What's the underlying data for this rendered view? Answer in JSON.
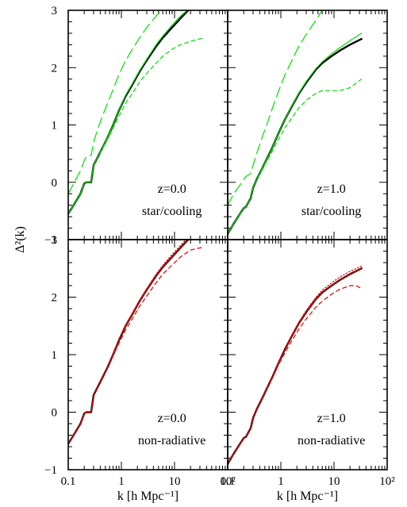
{
  "chart_data": {
    "type": "line",
    "layout": "2x2 panels sharing axes",
    "xlabel": "k [h Mpc⁻¹]",
    "ylabel": "Δ²(k)",
    "xscale": "log",
    "xlim": [
      0.1,
      100
    ],
    "ylim": [
      -1,
      3
    ],
    "x_tick_labels": [
      "0.1",
      "1",
      "10",
      "10²"
    ],
    "y_tick_labels": [
      "−1",
      "0",
      "1",
      "2",
      "3"
    ],
    "panels": [
      {
        "id": "top-left",
        "label_line1": "z=0.0",
        "label_line2": "star/cooling",
        "series": [
          {
            "color": "#000000",
            "dash": "solid",
            "width": 2.4,
            "x": [
              0.1,
              0.13,
              0.17,
              0.2,
              0.22,
              0.27,
              0.3,
              0.35,
              0.45,
              0.55,
              0.7,
              0.9,
              1.2,
              1.6,
              2.2,
              3,
              4.5,
              6,
              9,
              13,
              18
            ],
            "y": [
              -0.55,
              -0.38,
              -0.2,
              -0.02,
              0.0,
              0.0,
              0.3,
              0.42,
              0.62,
              0.78,
              1.0,
              1.25,
              1.5,
              1.7,
              1.93,
              2.13,
              2.37,
              2.52,
              2.7,
              2.86,
              3.0
            ]
          },
          {
            "color": "#00dd00",
            "dash": "solid",
            "width": 1.2,
            "x": [
              0.1,
              0.13,
              0.17,
              0.2,
              0.22,
              0.27,
              0.3,
              0.35,
              0.45,
              0.55,
              0.7,
              0.9,
              1.2,
              1.6,
              2.2,
              3,
              4.5,
              6,
              9,
              13,
              20
            ],
            "y": [
              -0.55,
              -0.38,
              -0.2,
              -0.02,
              0.0,
              0.0,
              0.3,
              0.42,
              0.62,
              0.78,
              1.0,
              1.25,
              1.52,
              1.72,
              1.95,
              2.15,
              2.4,
              2.55,
              2.74,
              2.9,
              3.05
            ]
          },
          {
            "color": "#00dd00",
            "dash": "short",
            "width": 1.2,
            "x": [
              0.1,
              0.13,
              0.17,
              0.2,
              0.22,
              0.27,
              0.3,
              0.35,
              0.45,
              0.55,
              0.7,
              0.9,
              1.2,
              1.6,
              2.2,
              3,
              4.5,
              6,
              9,
              13,
              20,
              35
            ],
            "y": [
              -0.55,
              -0.38,
              -0.2,
              -0.02,
              0.0,
              0.0,
              0.3,
              0.42,
              0.6,
              0.75,
              0.95,
              1.15,
              1.38,
              1.55,
              1.75,
              1.9,
              2.08,
              2.2,
              2.32,
              2.4,
              2.46,
              2.52
            ]
          },
          {
            "color": "#00dd00",
            "dash": "long",
            "width": 1.2,
            "x": [
              0.1,
              0.13,
              0.17,
              0.2,
              0.22,
              0.27,
              0.3,
              0.35,
              0.45,
              0.55,
              0.7,
              0.9,
              1.2,
              1.6,
              2.2,
              3,
              4.5,
              6.5
            ],
            "y": [
              -0.2,
              0.0,
              0.2,
              0.38,
              0.45,
              0.47,
              0.7,
              0.9,
              1.18,
              1.38,
              1.62,
              1.88,
              2.12,
              2.32,
              2.52,
              2.7,
              2.9,
              3.05
            ]
          }
        ]
      },
      {
        "id": "top-right",
        "label_line1": "z=1.0",
        "label_line2": "star/cooling",
        "series": [
          {
            "color": "#000000",
            "dash": "solid",
            "width": 2.4,
            "x": [
              0.1,
              0.13,
              0.17,
              0.2,
              0.22,
              0.27,
              0.3,
              0.35,
              0.45,
              0.55,
              0.7,
              0.9,
              1.2,
              1.6,
              2.2,
              3,
              4.5,
              6,
              9,
              13,
              20,
              33
            ],
            "y": [
              -0.9,
              -0.72,
              -0.55,
              -0.45,
              -0.43,
              -0.28,
              -0.1,
              0.05,
              0.25,
              0.42,
              0.62,
              0.85,
              1.1,
              1.32,
              1.55,
              1.74,
              1.96,
              2.08,
              2.2,
              2.3,
              2.4,
              2.5
            ]
          },
          {
            "color": "#00dd00",
            "dash": "solid",
            "width": 1.2,
            "x": [
              0.1,
              0.13,
              0.17,
              0.2,
              0.22,
              0.27,
              0.3,
              0.35,
              0.45,
              0.55,
              0.7,
              0.9,
              1.2,
              1.6,
              2.2,
              3,
              4.5,
              6,
              9,
              13,
              20,
              33
            ],
            "y": [
              -0.9,
              -0.72,
              -0.55,
              -0.45,
              -0.43,
              -0.28,
              -0.1,
              0.05,
              0.25,
              0.42,
              0.62,
              0.85,
              1.1,
              1.33,
              1.56,
              1.76,
              1.98,
              2.1,
              2.24,
              2.35,
              2.47,
              2.6
            ]
          },
          {
            "color": "#00dd00",
            "dash": "short",
            "width": 1.2,
            "x": [
              0.1,
              0.13,
              0.17,
              0.2,
              0.22,
              0.27,
              0.3,
              0.35,
              0.45,
              0.55,
              0.7,
              0.9,
              1.2,
              1.6,
              2.2,
              3,
              4.5,
              6,
              9,
              13,
              20,
              33
            ],
            "y": [
              -0.9,
              -0.72,
              -0.55,
              -0.45,
              -0.43,
              -0.28,
              -0.1,
              0.05,
              0.22,
              0.38,
              0.55,
              0.75,
              0.95,
              1.12,
              1.3,
              1.43,
              1.55,
              1.6,
              1.6,
              1.6,
              1.65,
              1.8
            ]
          },
          {
            "color": "#00dd00",
            "dash": "long",
            "width": 1.2,
            "x": [
              0.1,
              0.13,
              0.17,
              0.2,
              0.22,
              0.27,
              0.3,
              0.35,
              0.45,
              0.55,
              0.7,
              0.9,
              1.2,
              1.6,
              2.2,
              3,
              4.5,
              6
            ],
            "y": [
              -0.4,
              -0.2,
              -0.05,
              0.05,
              0.1,
              0.15,
              0.3,
              0.5,
              0.8,
              1.02,
              1.3,
              1.58,
              1.88,
              2.12,
              2.38,
              2.58,
              2.82,
              3.0
            ]
          }
        ]
      },
      {
        "id": "bottom-left",
        "label_line1": "z=0.0",
        "label_line2": "non-radiative",
        "series": [
          {
            "color": "#000000",
            "dash": "solid",
            "width": 2.4,
            "x": [
              0.1,
              0.13,
              0.17,
              0.2,
              0.22,
              0.27,
              0.3,
              0.35,
              0.45,
              0.55,
              0.7,
              0.9,
              1.2,
              1.6,
              2.2,
              3,
              4.5,
              6,
              9,
              13,
              18
            ],
            "y": [
              -0.55,
              -0.38,
              -0.2,
              -0.02,
              0.0,
              0.0,
              0.3,
              0.42,
              0.62,
              0.78,
              1.0,
              1.25,
              1.5,
              1.7,
              1.93,
              2.13,
              2.37,
              2.52,
              2.7,
              2.86,
              3.0
            ]
          },
          {
            "color": "#dd0000",
            "dash": "solid",
            "width": 1.2,
            "x": [
              0.1,
              0.13,
              0.17,
              0.2,
              0.22,
              0.27,
              0.3,
              0.35,
              0.45,
              0.55,
              0.7,
              0.9,
              1.2,
              1.6,
              2.2,
              3,
              4.5,
              6,
              9,
              13,
              18
            ],
            "y": [
              -0.55,
              -0.38,
              -0.2,
              -0.02,
              0.0,
              0.0,
              0.3,
              0.42,
              0.62,
              0.78,
              1.0,
              1.25,
              1.5,
              1.7,
              1.93,
              2.13,
              2.37,
              2.52,
              2.7,
              2.86,
              3.0
            ]
          },
          {
            "color": "#dd0000",
            "dash": "dot",
            "width": 1.2,
            "x": [
              0.1,
              0.13,
              0.17,
              0.2,
              0.22,
              0.27,
              0.3,
              0.35,
              0.45,
              0.55,
              0.7,
              0.9,
              1.2,
              1.6,
              2.2,
              3,
              4.5,
              6,
              9,
              13,
              18
            ],
            "y": [
              -0.55,
              -0.38,
              -0.2,
              -0.02,
              0.0,
              0.0,
              0.3,
              0.42,
              0.62,
              0.78,
              1.0,
              1.26,
              1.52,
              1.72,
              1.95,
              2.15,
              2.4,
              2.55,
              2.74,
              2.9,
              3.04
            ]
          },
          {
            "color": "#dd0000",
            "dash": "short",
            "width": 1.2,
            "x": [
              0.1,
              0.13,
              0.17,
              0.2,
              0.22,
              0.27,
              0.3,
              0.35,
              0.45,
              0.55,
              0.7,
              0.9,
              1.2,
              1.6,
              2.2,
              3,
              4.5,
              6,
              9,
              13,
              20,
              35
            ],
            "y": [
              -0.55,
              -0.38,
              -0.2,
              -0.02,
              0.0,
              0.0,
              0.3,
              0.42,
              0.62,
              0.78,
              0.98,
              1.2,
              1.43,
              1.62,
              1.84,
              2.02,
              2.25,
              2.4,
              2.56,
              2.7,
              2.82,
              2.87
            ]
          }
        ]
      },
      {
        "id": "bottom-right",
        "label_line1": "z=1.0",
        "label_line2": "non-radiative",
        "series": [
          {
            "color": "#000000",
            "dash": "solid",
            "width": 2.4,
            "x": [
              0.1,
              0.13,
              0.17,
              0.2,
              0.22,
              0.27,
              0.3,
              0.35,
              0.45,
              0.55,
              0.7,
              0.9,
              1.2,
              1.6,
              2.2,
              3,
              4.5,
              6,
              9,
              13,
              20,
              33
            ],
            "y": [
              -0.9,
              -0.72,
              -0.55,
              -0.45,
              -0.43,
              -0.28,
              -0.1,
              0.05,
              0.25,
              0.42,
              0.62,
              0.85,
              1.1,
              1.32,
              1.55,
              1.74,
              1.96,
              2.08,
              2.2,
              2.3,
              2.4,
              2.5
            ]
          },
          {
            "color": "#dd0000",
            "dash": "solid",
            "width": 1.2,
            "x": [
              0.1,
              0.13,
              0.17,
              0.2,
              0.22,
              0.27,
              0.3,
              0.35,
              0.45,
              0.55,
              0.7,
              0.9,
              1.2,
              1.6,
              2.2,
              3,
              4.5,
              6,
              9,
              13,
              20,
              33
            ],
            "y": [
              -0.9,
              -0.72,
              -0.55,
              -0.45,
              -0.43,
              -0.28,
              -0.1,
              0.05,
              0.25,
              0.42,
              0.62,
              0.85,
              1.1,
              1.32,
              1.55,
              1.74,
              1.96,
              2.08,
              2.2,
              2.3,
              2.4,
              2.5
            ]
          },
          {
            "color": "#dd0000",
            "dash": "dot",
            "width": 1.2,
            "x": [
              0.1,
              0.13,
              0.17,
              0.2,
              0.22,
              0.27,
              0.3,
              0.35,
              0.45,
              0.55,
              0.7,
              0.9,
              1.2,
              1.6,
              2.2,
              3,
              4.5,
              6,
              9,
              13,
              20,
              33
            ],
            "y": [
              -0.9,
              -0.72,
              -0.55,
              -0.45,
              -0.43,
              -0.28,
              -0.1,
              0.05,
              0.25,
              0.42,
              0.62,
              0.86,
              1.11,
              1.34,
              1.57,
              1.77,
              1.99,
              2.12,
              2.25,
              2.35,
              2.45,
              2.54
            ]
          },
          {
            "color": "#dd0000",
            "dash": "short",
            "width": 1.2,
            "x": [
              0.1,
              0.13,
              0.17,
              0.2,
              0.22,
              0.27,
              0.3,
              0.35,
              0.45,
              0.55,
              0.7,
              0.9,
              1.2,
              1.6,
              2.2,
              3,
              4.5,
              6,
              9,
              13,
              20,
              26,
              33
            ],
            "y": [
              -0.9,
              -0.72,
              -0.55,
              -0.45,
              -0.43,
              -0.28,
              -0.1,
              0.05,
              0.25,
              0.42,
              0.6,
              0.82,
              1.04,
              1.24,
              1.45,
              1.62,
              1.82,
              1.93,
              2.05,
              2.14,
              2.2,
              2.2,
              2.15
            ]
          }
        ]
      }
    ]
  }
}
